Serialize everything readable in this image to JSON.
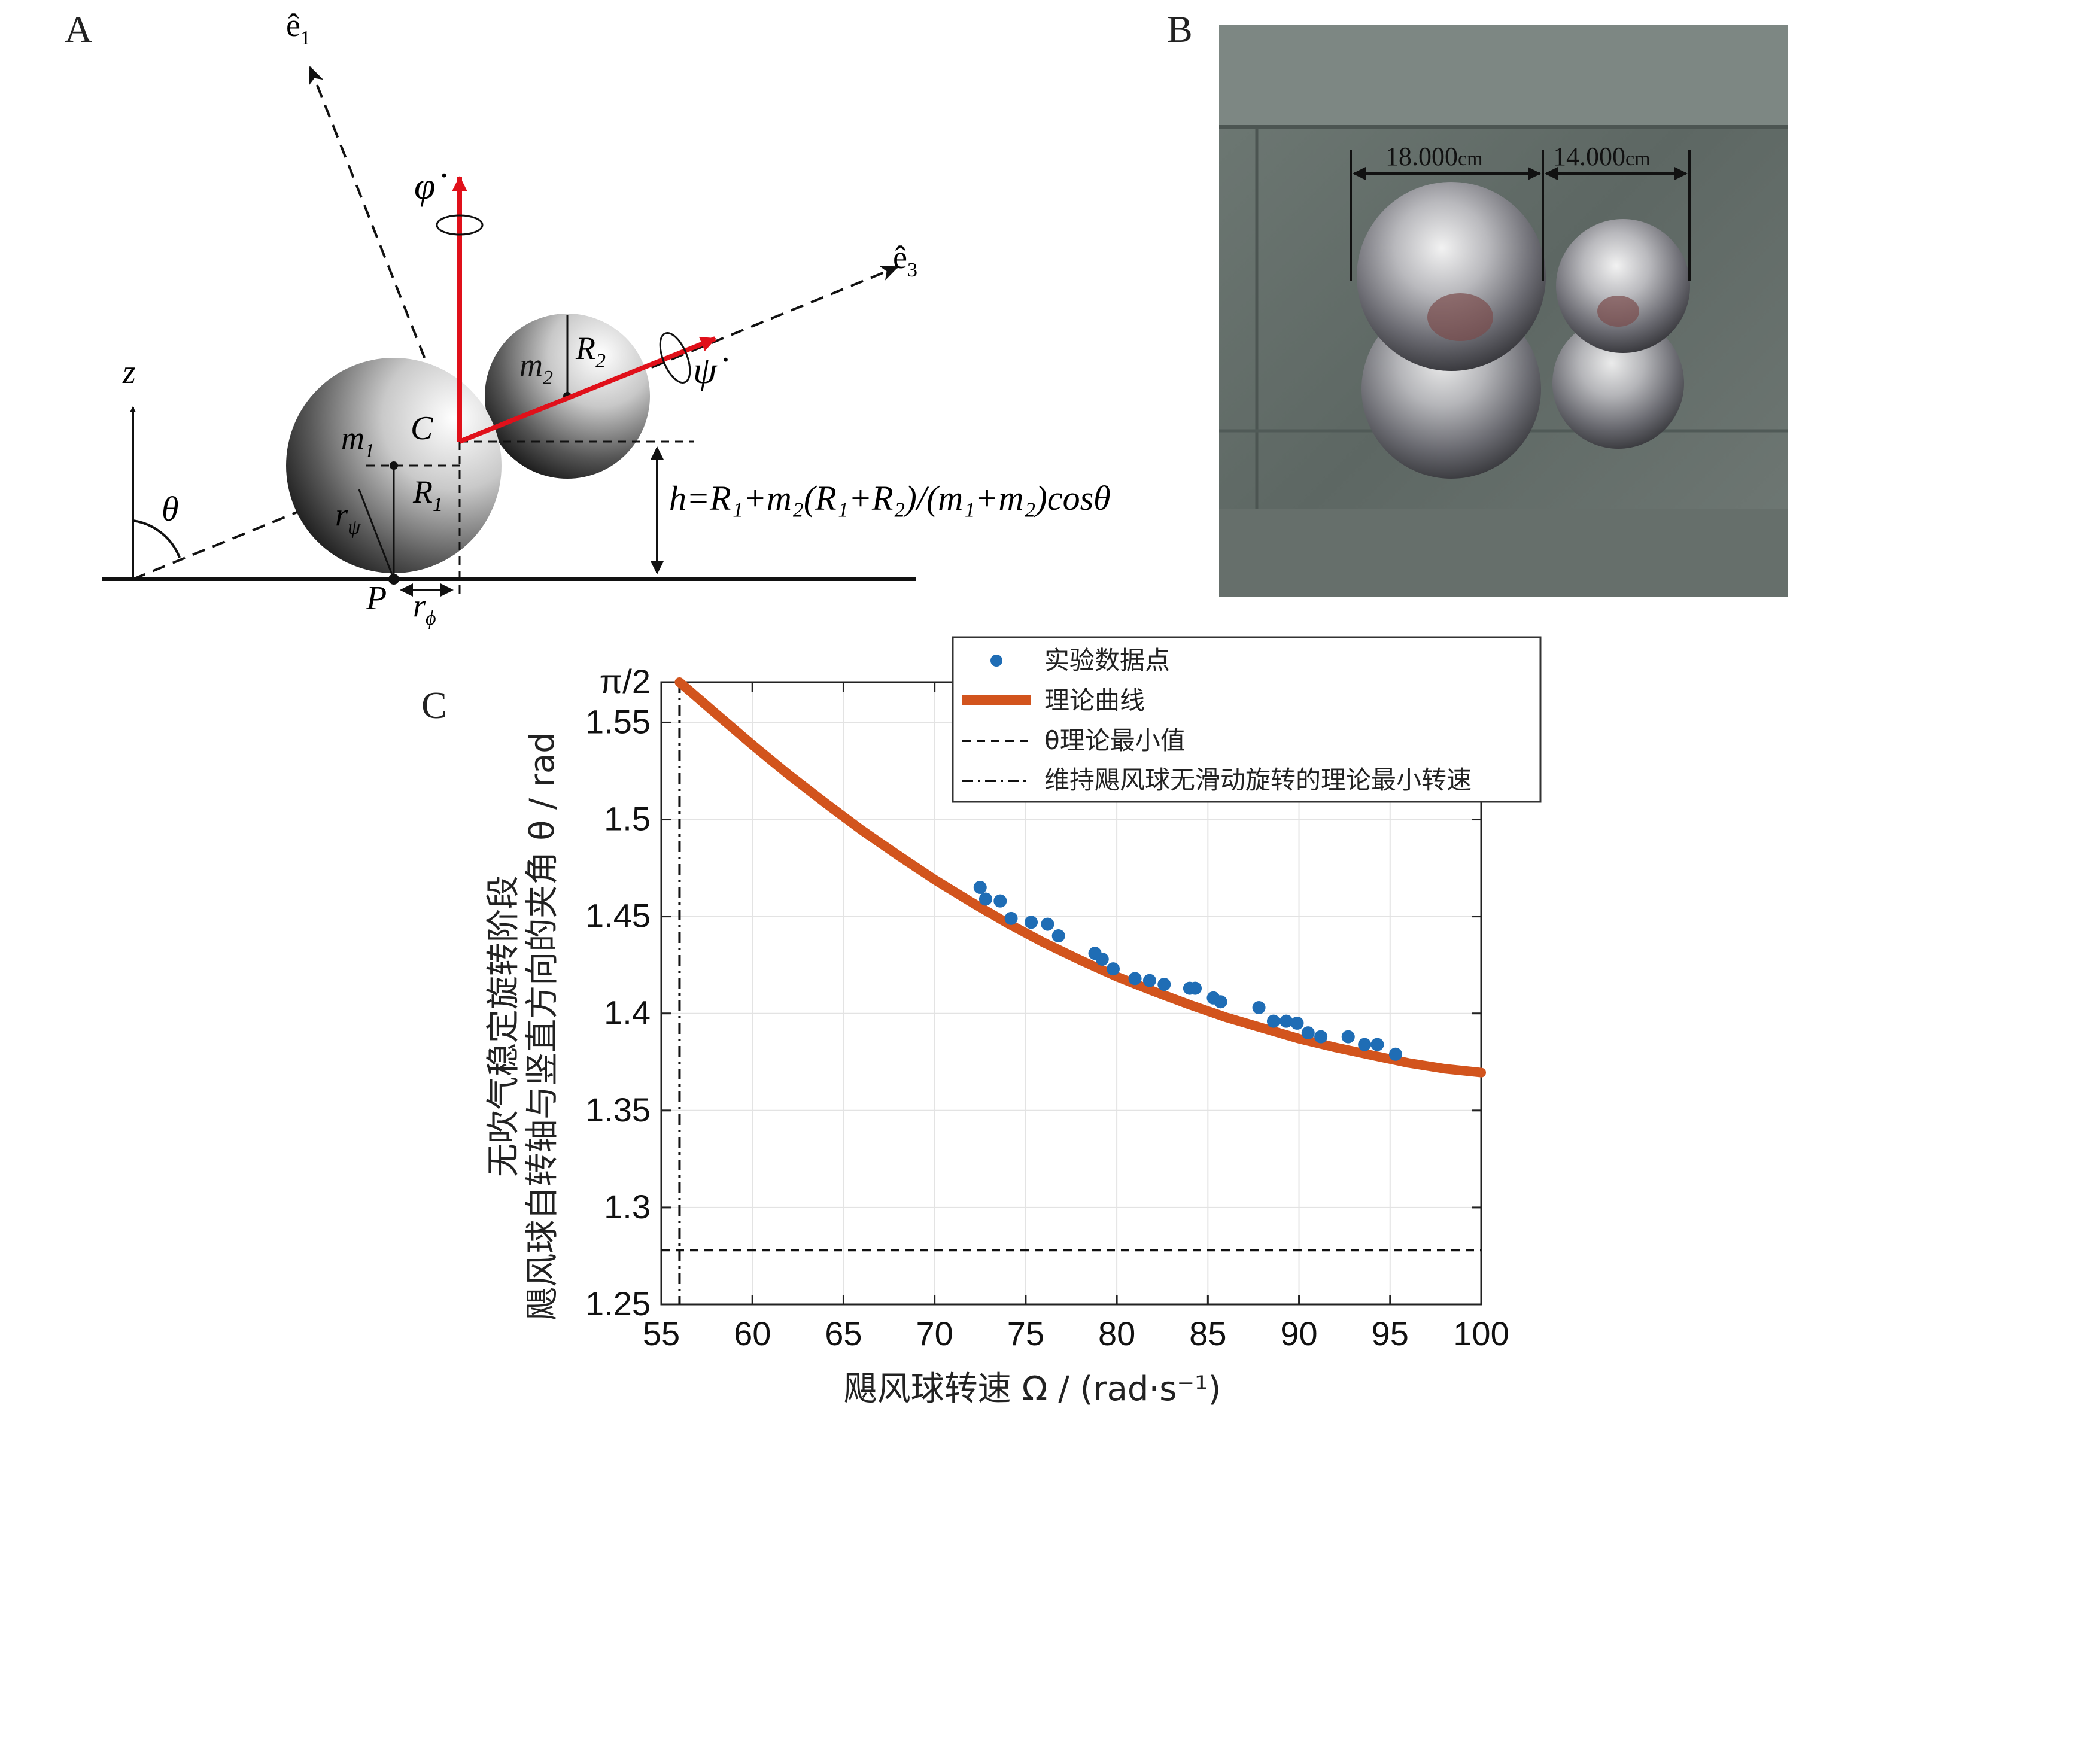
{
  "panels": {
    "a": {
      "letter": "A",
      "labels": {
        "e1": "ê",
        "e1_sub": "1",
        "e3": "ê",
        "e3_sub": "3",
        "phi_dot": "φ̇",
        "psi_dot": "ψ̇",
        "z": "z",
        "theta": "θ",
        "m1": "m",
        "m1_sub": "1",
        "m2": "m",
        "m2_sub": "2",
        "R1": "R",
        "R1_sub": "1",
        "R2": "R",
        "R2_sub": "2",
        "C": "C",
        "P": "P",
        "r_psi": "r",
        "r_psi_sub": "ψ",
        "r_phi": "r",
        "r_phi_sub": "ϕ",
        "height_formula": "h=R₁+m₂(R₁+R₂)/(m₁+m₂)cosθ"
      },
      "colors": {
        "angular_velocity": "#e0101a"
      }
    },
    "b": {
      "letter": "B",
      "dimension_1": "18.000",
      "dimension_1_unit": "cm",
      "dimension_2": "14.000",
      "dimension_2_unit": "cm"
    },
    "c": {
      "letter": "C"
    }
  },
  "chart_data": {
    "type": "scatter",
    "xlabel": "飓风球转速  Ω / (rad·s⁻¹)",
    "ylabel_line1": "无吹气稳定旋转阶段",
    "ylabel_line2": "飓风球自转轴与竖直方向的夹角  θ / rad",
    "xlim": [
      55,
      100
    ],
    "ylim": [
      1.25,
      1.5708
    ],
    "x_ticks": [
      55,
      60,
      65,
      70,
      75,
      80,
      85,
      90,
      95,
      100
    ],
    "y_ticks": [
      {
        "value": 1.25,
        "label": "1.25"
      },
      {
        "value": 1.3,
        "label": "1.3"
      },
      {
        "value": 1.35,
        "label": "1.35"
      },
      {
        "value": 1.4,
        "label": "1.4"
      },
      {
        "value": 1.45,
        "label": "1.45"
      },
      {
        "value": 1.5,
        "label": "1.5"
      },
      {
        "value": 1.55,
        "label": "1.55"
      },
      {
        "value": 1.5708,
        "label": "π/2"
      }
    ],
    "grid": true,
    "legend_placement": "top-right",
    "legend": [
      {
        "label": "实验数据点",
        "style": "marker"
      },
      {
        "label": "理论曲线",
        "style": "thick-line"
      },
      {
        "label": "θ理论最小值",
        "style": "dashed"
      },
      {
        "label": "维持飓风球无滑动旋转的理论最小转速",
        "style": "dashdot"
      }
    ],
    "colors": {
      "data_points": "#1f6db5",
      "theory_curve": "#d2541d",
      "reference_lines": "#111111"
    },
    "theory_curve": {
      "x": [
        56,
        58,
        60,
        62,
        64,
        66,
        68,
        70,
        72,
        74,
        76,
        78,
        80,
        82,
        84,
        86,
        88,
        90,
        92,
        94,
        96,
        98,
        100
      ],
      "y": [
        1.5708,
        1.5545,
        1.5385,
        1.523,
        1.5085,
        1.4945,
        1.4815,
        1.469,
        1.4575,
        1.4465,
        1.4365,
        1.4275,
        1.419,
        1.4115,
        1.4045,
        1.398,
        1.3925,
        1.387,
        1.3825,
        1.3785,
        1.3745,
        1.3715,
        1.3695
      ]
    },
    "data_points": {
      "x": [
        72.5,
        72.8,
        73.6,
        74.2,
        75.3,
        76.2,
        76.8,
        78.8,
        79.2,
        79.8,
        81.0,
        81.8,
        82.6,
        84.0,
        84.3,
        85.3,
        85.7,
        87.8,
        88.6,
        89.3,
        89.9,
        90.5,
        91.2,
        92.7,
        93.6,
        94.3,
        95.3
      ],
      "y": [
        1.465,
        1.459,
        1.458,
        1.449,
        1.447,
        1.446,
        1.44,
        1.431,
        1.428,
        1.423,
        1.418,
        1.417,
        1.415,
        1.413,
        1.413,
        1.408,
        1.406,
        1.403,
        1.396,
        1.396,
        1.395,
        1.39,
        1.388,
        1.388,
        1.384,
        1.384,
        1.379
      ]
    },
    "theta_min": 1.278,
    "omega_min": 56.0
  }
}
